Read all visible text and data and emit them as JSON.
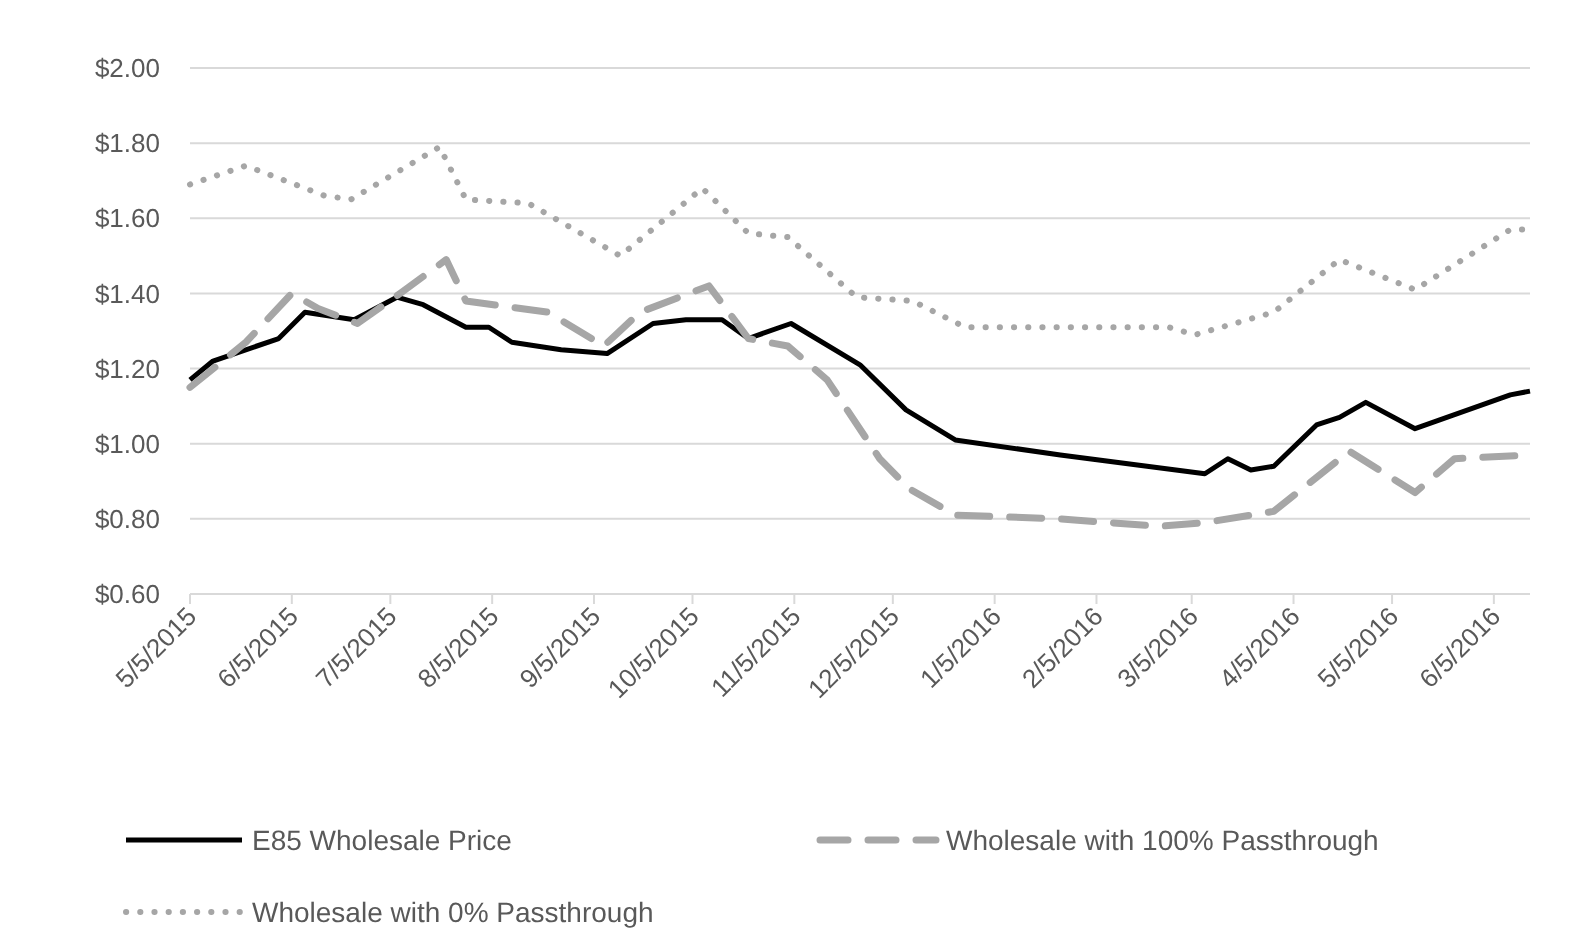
{
  "chart_data": {
    "type": "line",
    "ylim": [
      0.6,
      2.0
    ],
    "yticks": [
      {
        "value": 0.6,
        "label": "$0.60"
      },
      {
        "value": 0.8,
        "label": "$0.80"
      },
      {
        "value": 1.0,
        "label": "$1.00"
      },
      {
        "value": 1.2,
        "label": "$1.20"
      },
      {
        "value": 1.4,
        "label": "$1.40"
      },
      {
        "value": 1.6,
        "label": "$1.60"
      },
      {
        "value": 1.8,
        "label": "$1.80"
      },
      {
        "value": 2.0,
        "label": "$2.00"
      }
    ],
    "xlim": [
      "2015-05-05",
      "2016-06-16"
    ],
    "xticks": [
      {
        "value": "2015-05-05",
        "label": "5/5/2015"
      },
      {
        "value": "2015-06-05",
        "label": "6/5/2015"
      },
      {
        "value": "2015-07-05",
        "label": "7/5/2015"
      },
      {
        "value": "2015-08-05",
        "label": "8/5/2015"
      },
      {
        "value": "2015-09-05",
        "label": "9/5/2015"
      },
      {
        "value": "2015-10-05",
        "label": "10/5/2015"
      },
      {
        "value": "2015-11-05",
        "label": "11/5/2015"
      },
      {
        "value": "2015-12-05",
        "label": "12/5/2015"
      },
      {
        "value": "2016-01-05",
        "label": "1/5/2016"
      },
      {
        "value": "2016-02-05",
        "label": "2/5/2016"
      },
      {
        "value": "2016-03-05",
        "label": "3/5/2016"
      },
      {
        "value": "2016-04-05",
        "label": "4/5/2016"
      },
      {
        "value": "2016-05-05",
        "label": "5/5/2016"
      },
      {
        "value": "2016-06-05",
        "label": "6/5/2016"
      }
    ],
    "grid": "y",
    "legend": "bottom",
    "series": [
      {
        "name": "E85 Wholesale Price",
        "color": "#000000",
        "line_style": "solid",
        "x": [
          "2015-05-05",
          "2015-05-12",
          "2015-06-01",
          "2015-06-09",
          "2015-06-24",
          "2015-07-07",
          "2015-07-15",
          "2015-07-28",
          "2015-08-04",
          "2015-08-11",
          "2015-08-26",
          "2015-09-09",
          "2015-09-23",
          "2015-10-03",
          "2015-10-14",
          "2015-10-22",
          "2015-11-04",
          "2015-11-25",
          "2015-12-09",
          "2015-12-24",
          "2016-01-25",
          "2016-03-09",
          "2016-03-16",
          "2016-03-23",
          "2016-03-30",
          "2016-04-12",
          "2016-04-19",
          "2016-04-27",
          "2016-05-12",
          "2016-06-10",
          "2016-06-16"
        ],
        "values": [
          1.17,
          1.22,
          1.28,
          1.35,
          1.33,
          1.39,
          1.37,
          1.31,
          1.31,
          1.27,
          1.25,
          1.24,
          1.32,
          1.33,
          1.33,
          1.28,
          1.32,
          1.21,
          1.09,
          1.01,
          0.97,
          0.92,
          0.96,
          0.93,
          0.94,
          1.05,
          1.07,
          1.11,
          1.04,
          1.13,
          1.14
        ]
      },
      {
        "name": "Wholesale with 100% Passthrough",
        "color": "#a6a6a6",
        "line_style": "dashed",
        "x": [
          "2015-05-05",
          "2015-05-22",
          "2015-06-05",
          "2015-06-13",
          "2015-06-25",
          "2015-07-08",
          "2015-07-22",
          "2015-07-28",
          "2015-08-22",
          "2015-09-08",
          "2015-09-19",
          "2015-10-10",
          "2015-10-22",
          "2015-11-03",
          "2015-11-15",
          "2015-12-01",
          "2015-12-10",
          "2015-12-24",
          "2016-01-25",
          "2016-02-24",
          "2016-03-09",
          "2016-03-30",
          "2016-04-22",
          "2016-05-12",
          "2016-05-24",
          "2016-06-16"
        ],
        "values": [
          1.15,
          1.27,
          1.4,
          1.36,
          1.32,
          1.4,
          1.49,
          1.38,
          1.35,
          1.26,
          1.35,
          1.42,
          1.28,
          1.26,
          1.17,
          0.96,
          0.88,
          0.81,
          0.8,
          0.78,
          0.79,
          0.82,
          0.98,
          0.87,
          0.96,
          0.97
        ]
      },
      {
        "name": "Wholesale with 0% Passthrough",
        "color": "#a6a6a6",
        "line_style": "dotted",
        "x": [
          "2015-05-05",
          "2015-05-22",
          "2015-06-15",
          "2015-06-23",
          "2015-07-20",
          "2015-07-28",
          "2015-08-16",
          "2015-09-13",
          "2015-10-08",
          "2015-10-22",
          "2015-11-03",
          "2015-11-24",
          "2015-12-11",
          "2015-12-27",
          "2016-02-27",
          "2016-03-06",
          "2016-03-30",
          "2016-04-19",
          "2016-05-12",
          "2016-06-10",
          "2016-06-16"
        ],
        "values": [
          1.69,
          1.74,
          1.66,
          1.65,
          1.79,
          1.65,
          1.64,
          1.5,
          1.68,
          1.56,
          1.55,
          1.39,
          1.38,
          1.31,
          1.31,
          1.29,
          1.35,
          1.49,
          1.41,
          1.57,
          1.57
        ]
      }
    ]
  }
}
